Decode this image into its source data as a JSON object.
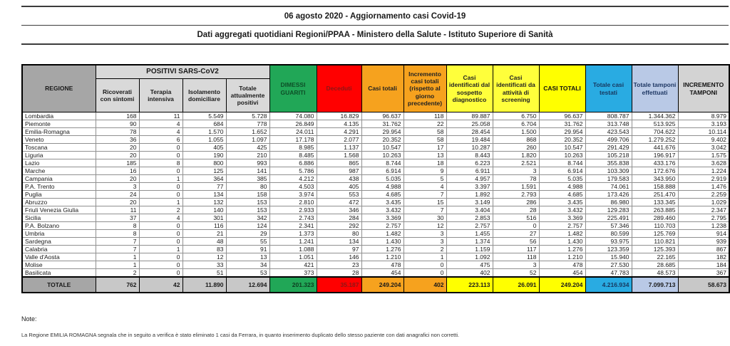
{
  "title": {
    "line1": "06 agosto 2020 - Aggiornamento casi Covid-19",
    "line2": "Dati aggregati quotidiani Regioni/PPAA - Ministero della Salute - Istituto Superiore di Sanità"
  },
  "colors": {
    "green": "#21a757",
    "red": "#ff0000",
    "orange": "#f6a21e",
    "yellow": "#ffff3b",
    "bright_yellow": "#ffff00",
    "blue": "#29abe2",
    "light_blue": "#b9c9e6",
    "gray_header": "#a6a6a6",
    "light_gray": "#d9d9d9",
    "dark_red_text": "#8c1616",
    "dark_green_text": "#0d4f27",
    "navy_text": "#17375e"
  },
  "table": {
    "header": {
      "regione": "REGIONE",
      "group": "POSITIVI SARS-CoV2",
      "sub": [
        "Ricoverati con sintomi",
        "Terapia intensiva",
        "Isolamento domiciliare",
        "Totale attualmente positivi"
      ],
      "cols": [
        "DIMESSI GUARITI",
        "Deceduti",
        "Casi totali",
        "Incremento casi totali (rispetto al giorno precedente)",
        "Casi identificati dal sospetto diagnostico",
        "Casi identificati da attività di screening",
        "CASI TOTALI",
        "Totale casi testati",
        "Totale tamponi effettuati",
        "INCREMENTO TAMPONI"
      ]
    },
    "rows": [
      {
        "regione": "Lombardia",
        "values": [
          "168",
          "11",
          "5.549",
          "5.728",
          "74.080",
          "16.829",
          "96.637",
          "118",
          "89.887",
          "6.750",
          "96.637",
          "808.787",
          "1.344.362",
          "8.979"
        ]
      },
      {
        "regione": "Piemonte",
        "values": [
          "90",
          "4",
          "684",
          "778",
          "26.849",
          "4.135",
          "31.762",
          "22",
          "25.058",
          "6.704",
          "31.762",
          "313.748",
          "513.925",
          "3.193"
        ]
      },
      {
        "regione": "Emilia-Romagna",
        "values": [
          "78",
          "4",
          "1.570",
          "1.652",
          "24.011",
          "4.291",
          "29.954",
          "58",
          "28.454",
          "1.500",
          "29.954",
          "423.543",
          "704.622",
          "10.114"
        ]
      },
      {
        "regione": "Veneto",
        "values": [
          "36",
          "6",
          "1.055",
          "1.097",
          "17.178",
          "2.077",
          "20.352",
          "58",
          "19.484",
          "868",
          "20.352",
          "499.706",
          "1.279.252",
          "9.402"
        ]
      },
      {
        "regione": "Toscana",
        "values": [
          "20",
          "0",
          "405",
          "425",
          "8.985",
          "1.137",
          "10.547",
          "17",
          "10.287",
          "260",
          "10.547",
          "291.429",
          "441.676",
          "3.042"
        ]
      },
      {
        "regione": "Liguria",
        "values": [
          "20",
          "0",
          "190",
          "210",
          "8.485",
          "1.568",
          "10.263",
          "13",
          "8.443",
          "1.820",
          "10.263",
          "105.218",
          "196.917",
          "1.575"
        ]
      },
      {
        "regione": "Lazio",
        "values": [
          "185",
          "8",
          "800",
          "993",
          "6.886",
          "865",
          "8.744",
          "18",
          "6.223",
          "2.521",
          "8.744",
          "355.838",
          "433.176",
          "3.628"
        ]
      },
      {
        "regione": "Marche",
        "values": [
          "16",
          "0",
          "125",
          "141",
          "5.786",
          "987",
          "6.914",
          "9",
          "6.911",
          "3",
          "6.914",
          "103.309",
          "172.676",
          "1.224"
        ]
      },
      {
        "regione": "Campania",
        "values": [
          "20",
          "1",
          "364",
          "385",
          "4.212",
          "438",
          "5.035",
          "5",
          "4.957",
          "78",
          "5.035",
          "179.583",
          "343.950",
          "2.919"
        ]
      },
      {
        "regione": "P.A. Trento",
        "values": [
          "3",
          "0",
          "77",
          "80",
          "4.503",
          "405",
          "4.988",
          "4",
          "3.397",
          "1.591",
          "4.988",
          "74.061",
          "158.888",
          "1.476"
        ]
      },
      {
        "regione": "Puglia",
        "values": [
          "24",
          "0",
          "134",
          "158",
          "3.974",
          "553",
          "4.685",
          "7",
          "1.892",
          "2.793",
          "4.685",
          "173.426",
          "251.470",
          "2.259"
        ]
      },
      {
        "regione": "Abruzzo",
        "values": [
          "20",
          "1",
          "132",
          "153",
          "2.810",
          "472",
          "3.435",
          "15",
          "3.149",
          "286",
          "3.435",
          "86.980",
          "133.345",
          "1.029"
        ]
      },
      {
        "regione": "Friuli Venezia Giulia",
        "values": [
          "11",
          "2",
          "140",
          "153",
          "2.933",
          "346",
          "3.432",
          "7",
          "3.404",
          "28",
          "3.432",
          "129.283",
          "263.885",
          "2.347"
        ]
      },
      {
        "regione": "Sicilia",
        "values": [
          "37",
          "4",
          "301",
          "342",
          "2.743",
          "284",
          "3.369",
          "30",
          "2.853",
          "516",
          "3.369",
          "225.491",
          "289.460",
          "2.795"
        ]
      },
      {
        "regione": "P.A. Bolzano",
        "values": [
          "8",
          "0",
          "116",
          "124",
          "2.341",
          "292",
          "2.757",
          "12",
          "2.757",
          "0",
          "2.757",
          "57.346",
          "110.703",
          "1.238"
        ]
      },
      {
        "regione": "Umbria",
        "values": [
          "8",
          "0",
          "21",
          "29",
          "1.373",
          "80",
          "1.482",
          "3",
          "1.455",
          "27",
          "1.482",
          "80.599",
          "125.769",
          "914"
        ]
      },
      {
        "regione": "Sardegna",
        "values": [
          "7",
          "0",
          "48",
          "55",
          "1.241",
          "134",
          "1.430",
          "3",
          "1.374",
          "56",
          "1.430",
          "93.975",
          "110.821",
          "939"
        ]
      },
      {
        "regione": "Calabria",
        "values": [
          "7",
          "1",
          "83",
          "91",
          "1.088",
          "97",
          "1.276",
          "2",
          "1.159",
          "117",
          "1.276",
          "123.359",
          "125.393",
          "867"
        ]
      },
      {
        "regione": "Valle d'Aosta",
        "values": [
          "1",
          "0",
          "12",
          "13",
          "1.051",
          "146",
          "1.210",
          "1",
          "1.092",
          "118",
          "1.210",
          "15.940",
          "22.165",
          "182"
        ]
      },
      {
        "regione": "Molise",
        "values": [
          "1",
          "0",
          "33",
          "34",
          "421",
          "23",
          "478",
          "0",
          "475",
          "3",
          "478",
          "27.530",
          "28.685",
          "184"
        ]
      },
      {
        "regione": "Basilicata",
        "values": [
          "2",
          "0",
          "51",
          "53",
          "373",
          "28",
          "454",
          "0",
          "402",
          "52",
          "454",
          "47.783",
          "48.573",
          "367"
        ]
      }
    ],
    "totale": {
      "label": "TOTALE",
      "values": [
        "762",
        "42",
        "11.890",
        "12.694",
        "201.323",
        "35.187",
        "249.204",
        "402",
        "223.113",
        "26.091",
        "249.204",
        "4.216.934",
        "7.099.713",
        "58.673"
      ]
    }
  },
  "note": {
    "heading": "Note:",
    "text": "La Regione EMILIA ROMAGNA segnala che in seguito a verifica è stato eliminato 1 casi da Ferrara, in quanto inserimento duplicato dello stesso paziente con dati anagrafici non corretti."
  }
}
